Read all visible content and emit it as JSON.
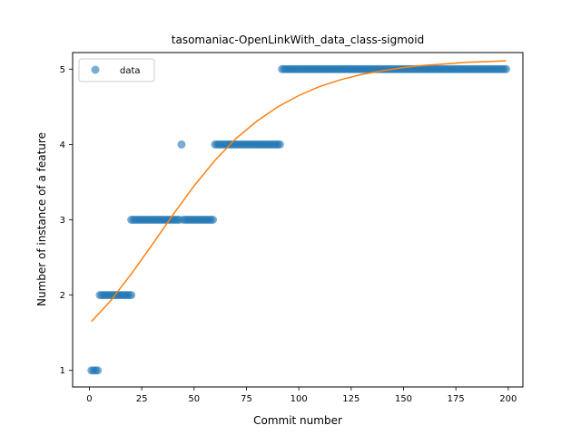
{
  "chart_data": {
    "type": "scatter",
    "title": "tasomaniac-OpenLinkWith_data_class-sigmoid",
    "xlabel": "Commit number",
    "ylabel": "Number of instance of a feature",
    "xlim": [
      -8,
      207
    ],
    "ylim": [
      0.78,
      5.22
    ],
    "xticks": [
      0,
      25,
      50,
      75,
      100,
      125,
      150,
      175,
      200
    ],
    "yticks": [
      1,
      2,
      3,
      4,
      5
    ],
    "grid": false,
    "legend": {
      "position": "top-left",
      "entries": [
        "data"
      ]
    },
    "colors": {
      "data": "#1f77b4",
      "fit": "#ff7f0e"
    },
    "series": [
      {
        "name": "data",
        "kind": "scatter",
        "segments": [
          {
            "x_from": 1,
            "x_to": 4,
            "y": 1
          },
          {
            "x_from": 5,
            "x_to": 20,
            "y": 2
          },
          {
            "x_from": 20,
            "x_to": 43,
            "y": 3
          },
          {
            "x_from": 44,
            "x_to": 44,
            "y": 4
          },
          {
            "x_from": 45,
            "x_to": 59,
            "y": 3
          },
          {
            "x_from": 60,
            "x_to": 91,
            "y": 4
          },
          {
            "x_from": 92,
            "x_to": 199,
            "y": 5
          }
        ]
      },
      {
        "kind": "line",
        "x": [
          1,
          10,
          20,
          30,
          40,
          50,
          60,
          70,
          80,
          90,
          100,
          110,
          120,
          130,
          140,
          150,
          160,
          170,
          180,
          190,
          199
        ],
        "y": [
          1.65,
          1.92,
          2.28,
          2.67,
          3.07,
          3.45,
          3.79,
          4.08,
          4.31,
          4.5,
          4.65,
          4.77,
          4.86,
          4.93,
          4.98,
          5.02,
          5.05,
          5.07,
          5.09,
          5.1,
          5.11
        ]
      }
    ]
  }
}
